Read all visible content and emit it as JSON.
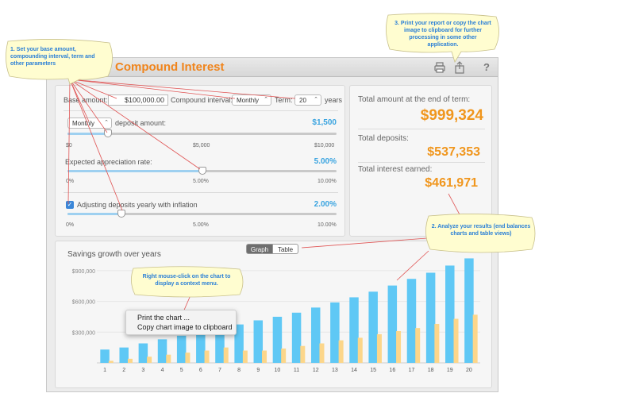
{
  "app": {
    "title": "Compound Interest"
  },
  "toolbar": {
    "print_icon": "printer-icon",
    "share_icon": "share-icon",
    "help_label": "?"
  },
  "inputs": {
    "base_amount_label": "Base amount:",
    "base_amount_value": "$100,000.00",
    "compounding_label": "Compound interval:",
    "compounding_value": "Monthly",
    "term_label": "Term:",
    "term_value": "20",
    "term_unit": "years",
    "deposit_freq_value": "Monthly",
    "deposit_label": "deposit amount:",
    "deposit_value": "$1,500",
    "deposit_slider": {
      "level": 0.15,
      "ticks": [
        "$0",
        "$5,000",
        "$10,000"
      ]
    },
    "appreciation_label": "Expected appreciation rate:",
    "appreciation_value": "5.00%",
    "appreciation_slider": {
      "level": 0.5,
      "ticks": [
        "0%",
        "5.00%",
        "10.00%"
      ]
    },
    "inflation_checked": true,
    "inflation_label": "Adjusting deposits yearly with inflation",
    "inflation_value": "2.00%",
    "inflation_slider": {
      "level": 0.2,
      "ticks": [
        "0%",
        "5.00%",
        "10.00%"
      ]
    }
  },
  "results": {
    "total_label": "Total amount at the end of term:",
    "total_value": "$999,324",
    "deposits_label": "Total deposits:",
    "deposits_value": "$537,353",
    "interest_label": "Total interest earned:",
    "interest_value": "$461,971"
  },
  "view_toggle": {
    "graph": "Graph",
    "table": "Table",
    "selected": "Graph"
  },
  "chart_data": {
    "type": "bar",
    "title": "Savings growth over years",
    "categories": [
      "1",
      "2",
      "3",
      "4",
      "5",
      "6",
      "7",
      "8",
      "9",
      "10",
      "11",
      "12",
      "13",
      "14",
      "15",
      "16",
      "17",
      "18",
      "19",
      "20"
    ],
    "y_ticks": [
      "$300,000",
      "$600,000",
      "$900,000"
    ],
    "ylim": [
      0,
      1000000
    ],
    "series": [
      {
        "color": "#5fc8f5",
        "values": [
          130000,
          150000,
          190000,
          230000,
          265000,
          305000,
          345000,
          375000,
          415000,
          450000,
          490000,
          540000,
          590000,
          640000,
          695000,
          755000,
          820000,
          880000,
          950000,
          1020000
        ]
      },
      {
        "color": "#fcd68a",
        "values": [
          20000,
          40000,
          60000,
          80000,
          100000,
          120000,
          150000,
          120000,
          120000,
          140000,
          165000,
          190000,
          220000,
          245000,
          280000,
          310000,
          340000,
          380000,
          430000,
          470000
        ]
      }
    ]
  },
  "context_menu": {
    "items": [
      "Print the chart ...",
      "Copy chart image to clipboard"
    ]
  },
  "callouts": {
    "c1": "1. Set your base amount, compounding interval, term and other parameters",
    "c2": "2. Analyze your results (end balances charts and table views)",
    "c3": "3. Print your report or copy the chart image to clipboard for further processing in some other application.",
    "c4": "Right mouse-click on the chart to display a context menu."
  },
  "colors": {
    "accent": "#f0961d",
    "blue": "#3aa4e0",
    "callout_fill": "#fffdd0"
  }
}
